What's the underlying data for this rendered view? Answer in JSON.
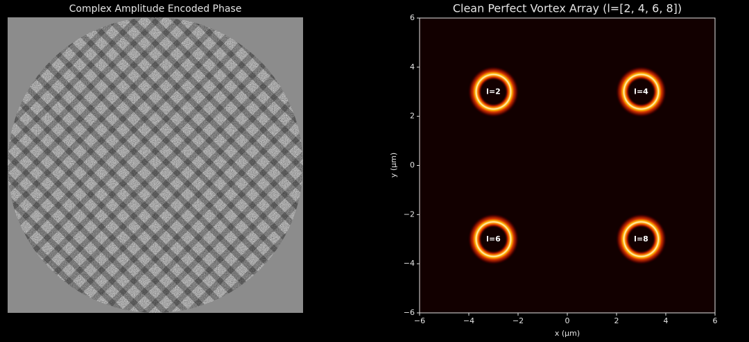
{
  "chart_data": [
    {
      "type": "image",
      "title": "Complex Amplitude Encoded Phase"
    },
    {
      "type": "scatter",
      "title": "Clean Perfect Vortex Array (l=[2, 4, 6, 8])",
      "x_label": "x (μm)",
      "y_label": "y (μm)",
      "points": [
        {
          "x": -3,
          "y": 3,
          "label": "l=2"
        },
        {
          "x": 3,
          "y": 3,
          "label": "l=4"
        },
        {
          "x": -3,
          "y": -3,
          "label": "l=6"
        },
        {
          "x": 3,
          "y": -3,
          "label": "l=8"
        }
      ],
      "ring_radius": 0.7,
      "xlim": [
        -6,
        6
      ],
      "ylim": [
        -6,
        6
      ],
      "xticks": [
        {
          "value": -6,
          "label": "−6"
        },
        {
          "value": -4,
          "label": "−4"
        },
        {
          "value": -2,
          "label": "−2"
        },
        0,
        2,
        4,
        6
      ],
      "yticks": [
        {
          "value": -6,
          "label": "−6"
        },
        {
          "value": -4,
          "label": "−4"
        },
        {
          "value": -2,
          "label": "−2"
        },
        0,
        2,
        4,
        6
      ]
    }
  ]
}
